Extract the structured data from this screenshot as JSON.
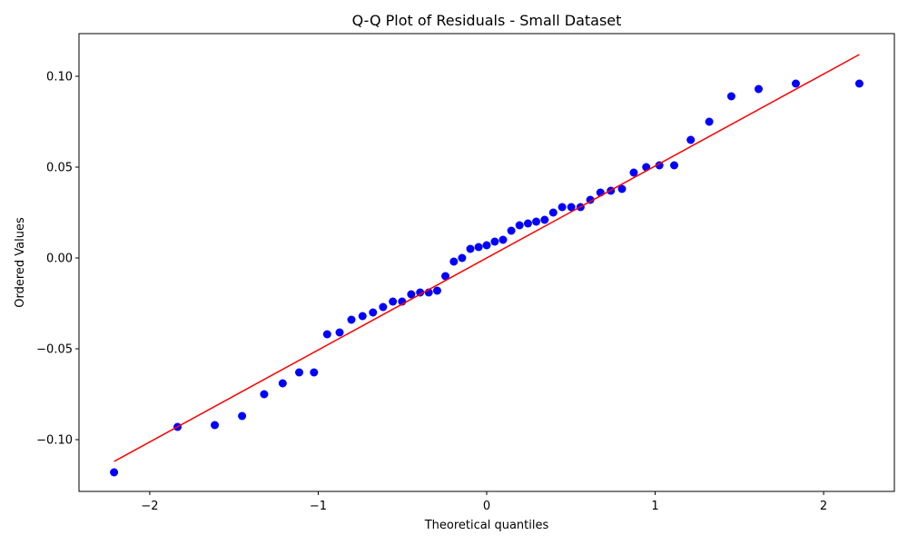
{
  "chart_data": {
    "type": "scatter",
    "title": "Q-Q Plot of Residuals - Small Dataset",
    "xlabel": "Theoretical quantiles",
    "ylabel": "Ordered Values",
    "xlim": [
      -2.42,
      2.42
    ],
    "ylim": [
      -0.1285,
      0.1235
    ],
    "xticks": [
      -2,
      -1,
      0,
      1,
      2
    ],
    "xtick_labels": [
      "−2",
      "−1",
      "0",
      "1",
      "2"
    ],
    "yticks": [
      -0.1,
      -0.05,
      0.0,
      0.05,
      0.1
    ],
    "ytick_labels": [
      "−0.10",
      "−0.05",
      "0.00",
      "0.05",
      "0.10"
    ],
    "grid": false,
    "point_color": "#0000ff",
    "line_color": "#ff0000",
    "points": {
      "x": [
        -2.212,
        -1.835,
        -1.614,
        -1.452,
        -1.321,
        -1.211,
        -1.113,
        -1.025,
        -0.947,
        -0.873,
        -0.803,
        -0.737,
        -0.675,
        -0.615,
        -0.557,
        -0.502,
        -0.448,
        -0.395,
        -0.344,
        -0.294,
        -0.245,
        -0.195,
        -0.146,
        -0.097,
        -0.048,
        0.0,
        0.048,
        0.097,
        0.146,
        0.195,
        0.245,
        0.294,
        0.344,
        0.395,
        0.448,
        0.502,
        0.557,
        0.615,
        0.675,
        0.737,
        0.803,
        0.873,
        0.947,
        1.025,
        1.113,
        1.211,
        1.321,
        1.452,
        1.614,
        1.835,
        2.212
      ],
      "y": [
        -0.118,
        -0.093,
        -0.092,
        -0.087,
        -0.075,
        -0.069,
        -0.063,
        -0.063,
        -0.042,
        -0.041,
        -0.034,
        -0.032,
        -0.03,
        -0.027,
        -0.024,
        -0.024,
        -0.02,
        -0.019,
        -0.019,
        -0.018,
        -0.01,
        -0.002,
        0.0,
        0.005,
        0.006,
        0.007,
        0.009,
        0.01,
        0.015,
        0.018,
        0.019,
        0.02,
        0.021,
        0.025,
        0.028,
        0.028,
        0.028,
        0.032,
        0.036,
        0.037,
        0.038,
        0.047,
        0.05,
        0.051,
        0.051,
        0.065,
        0.075,
        0.089,
        0.093,
        0.096,
        0.096
      ]
    },
    "fit_line": {
      "x": [
        -2.212,
        2.212
      ],
      "y": [
        -0.112,
        0.112
      ]
    }
  }
}
